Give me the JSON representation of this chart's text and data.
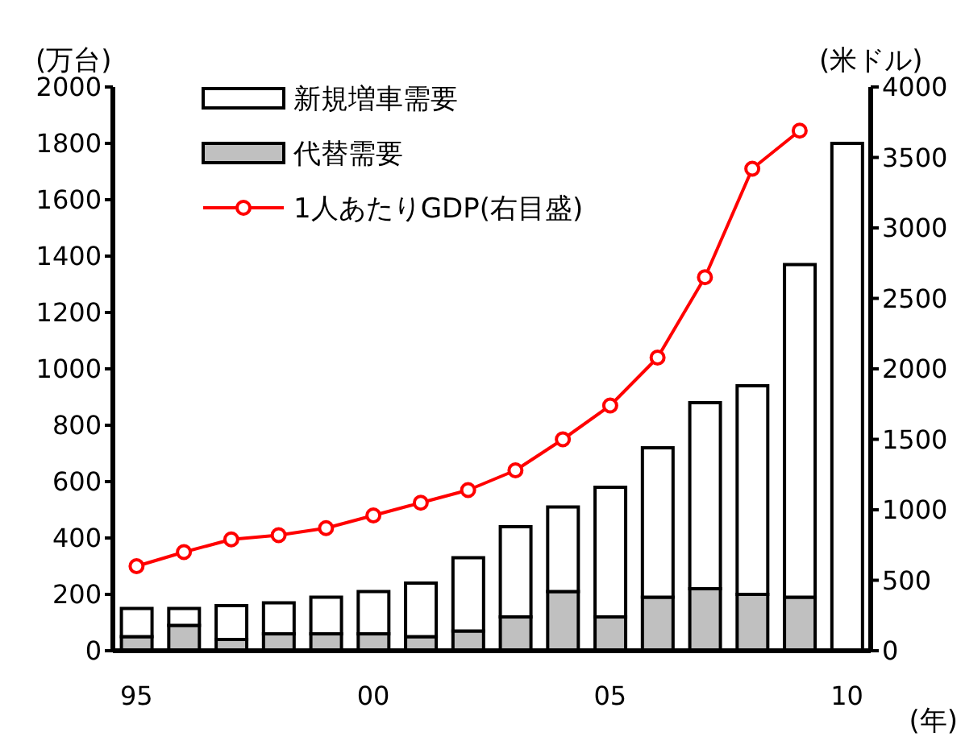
{
  "chart_data": {
    "type": "bar",
    "stacked": true,
    "xlabel": "(年)",
    "ylabel": "(万台)",
    "y2label": "(米ドル)",
    "categories": [
      "95",
      null,
      null,
      null,
      null,
      "00",
      null,
      null,
      null,
      null,
      "05",
      null,
      null,
      null,
      null,
      "10"
    ],
    "series": [
      {
        "name": "代替需要",
        "color": "#c0c0c0",
        "values": [
          50,
          90,
          40,
          60,
          60,
          60,
          50,
          70,
          120,
          210,
          120,
          190,
          220,
          200,
          190,
          null
        ]
      },
      {
        "name": "新規増車需要",
        "color": "#ffffff",
        "values": [
          100,
          60,
          120,
          110,
          130,
          150,
          190,
          260,
          320,
          300,
          460,
          530,
          660,
          740,
          1180,
          1800
        ]
      },
      {
        "name": "1人あたりGDP(右目盛)",
        "type": "line",
        "axis": "y2",
        "color": "#ff0000",
        "marker": "circle",
        "values": [
          600,
          700,
          790,
          820,
          870,
          960,
          1050,
          1140,
          1280,
          1500,
          1740,
          2080,
          2650,
          3420,
          3690,
          null
        ]
      }
    ],
    "ylim": [
      0,
      2000
    ],
    "yticks": [
      0,
      200,
      400,
      600,
      800,
      1000,
      1200,
      1400,
      1600,
      1800,
      2000
    ],
    "y2lim": [
      0,
      4000
    ],
    "y2ticks": [
      0,
      500,
      1000,
      1500,
      2000,
      2500,
      3000,
      3500,
      4000
    ],
    "grid": false,
    "legend": "top left"
  }
}
